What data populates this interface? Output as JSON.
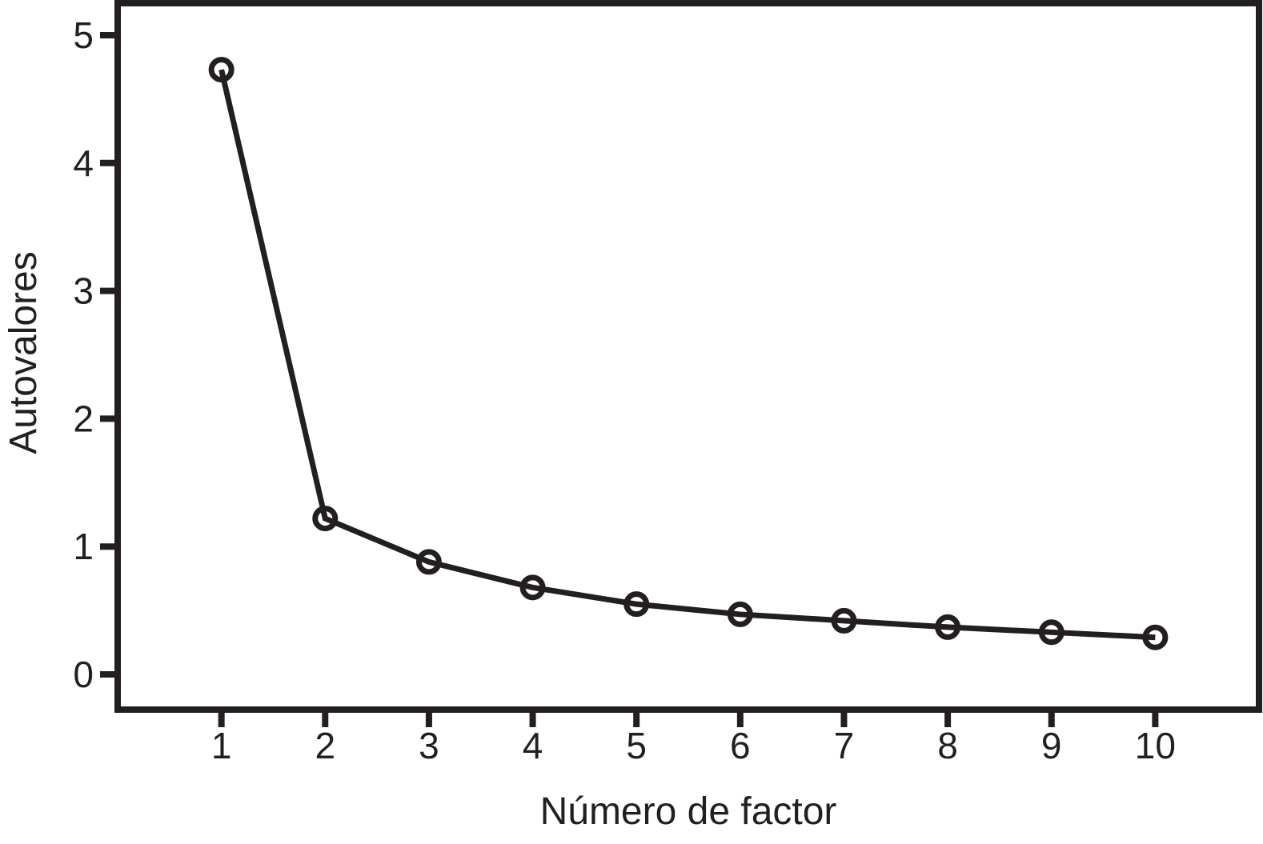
{
  "figure": {
    "kind": "scree-plot",
    "background_color": "#ffffff",
    "foreground_color": "#231f20"
  },
  "chart_data": {
    "type": "line",
    "title": "",
    "xlabel": "Número de factor",
    "ylabel": "Autovalores",
    "x": [
      1,
      2,
      3,
      4,
      5,
      6,
      7,
      8,
      9,
      10
    ],
    "values": [
      4.73,
      1.22,
      0.88,
      0.68,
      0.55,
      0.47,
      0.42,
      0.37,
      0.33,
      0.29
    ],
    "series_name": "Autovalores",
    "xticks": [
      1,
      2,
      3,
      4,
      5,
      6,
      7,
      8,
      9,
      10
    ],
    "yticks": [
      0,
      1,
      2,
      3,
      4,
      5
    ],
    "xlim": [
      0,
      11
    ],
    "ylim": [
      -0.275,
      5.25
    ],
    "grid": false,
    "legend": false,
    "marker": "open-circle",
    "marker_radius": 12.5,
    "marker_stroke_width": 7,
    "line_width": 7,
    "frame_stroke_width": 8,
    "tick_length": 20,
    "tick_font_size": 46,
    "label_font_size": 48,
    "line_color": "#231f20",
    "background": "#ffffff"
  }
}
